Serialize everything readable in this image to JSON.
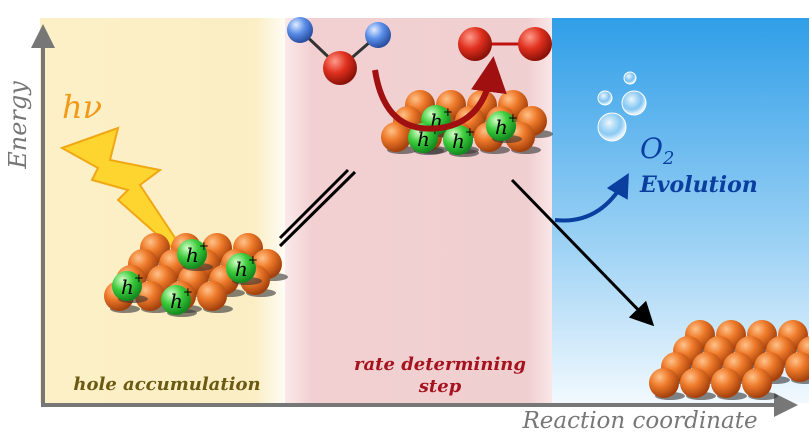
{
  "axis_labels": {
    "y": "Energy",
    "x": "Reaction coordinate"
  },
  "photon_label": "hν",
  "hole_label": {
    "base": "h",
    "sup": "+"
  },
  "product_label": {
    "base": "O",
    "sub": "2",
    "text": "Evolution"
  },
  "regions": [
    {
      "label": [
        "hole accumulation"
      ]
    },
    {
      "label": [
        "rate determining",
        "step"
      ]
    }
  ]
}
